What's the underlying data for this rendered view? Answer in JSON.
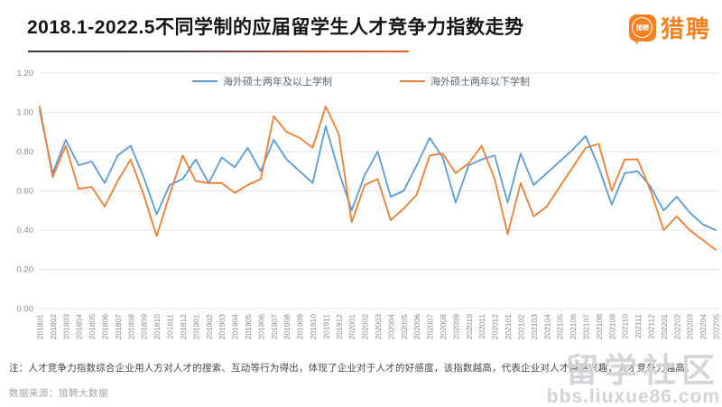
{
  "header": {
    "title": "2018.1-2022.5不同学制的应届留学生人才竞争力指数走势",
    "logo": {
      "wordmark": "猎聘",
      "badge_text": "猎聘"
    }
  },
  "chart_data": {
    "type": "line",
    "title": "2018.1-2022.5不同学制的应届留学生人才竞争力指数走势",
    "xlabel": "",
    "ylabel": "",
    "ylim": [
      0,
      1.2
    ],
    "yticks": [
      "0.00",
      "0.20",
      "0.40",
      "0.60",
      "0.80",
      "1.00",
      "1.20"
    ],
    "grid": "horizontal",
    "legend_position": "top",
    "categories": [
      "201801",
      "201802",
      "201803",
      "201804",
      "201805",
      "201806",
      "201807",
      "201808",
      "201809",
      "201810",
      "201811",
      "201812",
      "201901",
      "201902",
      "201903",
      "201904",
      "201905",
      "201906",
      "201907",
      "201908",
      "201909",
      "201910",
      "201911",
      "201912",
      "202001",
      "202002",
      "202003",
      "202004",
      "202005",
      "202006",
      "202007",
      "202008",
      "202009",
      "202010",
      "202011",
      "202012",
      "202101",
      "202102",
      "202103",
      "202104",
      "202105",
      "202106",
      "202107",
      "202108",
      "202109",
      "202110",
      "202111",
      "202112",
      "202201",
      "202202",
      "202203",
      "202204",
      "202205"
    ],
    "series": [
      {
        "name": "海外硕士两年及以上学制",
        "color": "#5B9BD5",
        "values": [
          1.01,
          0.69,
          0.86,
          0.73,
          0.75,
          0.64,
          0.78,
          0.83,
          0.67,
          0.48,
          0.63,
          0.66,
          0.76,
          0.64,
          0.77,
          0.72,
          0.82,
          0.7,
          0.86,
          0.76,
          0.7,
          0.64,
          0.93,
          0.7,
          0.5,
          0.68,
          0.8,
          0.57,
          0.6,
          0.73,
          0.87,
          0.77,
          0.54,
          0.73,
          0.76,
          0.78,
          0.54,
          0.79,
          0.63,
          0.69,
          0.75,
          0.81,
          0.88,
          0.72,
          0.53,
          0.69,
          0.7,
          0.62,
          0.5,
          0.57,
          0.49,
          0.43,
          0.4
        ]
      },
      {
        "name": "海外硕士两年以下学制",
        "color": "#ED7D31",
        "values": [
          1.03,
          0.67,
          0.83,
          0.61,
          0.62,
          0.52,
          0.65,
          0.76,
          0.58,
          0.37,
          0.58,
          0.78,
          0.65,
          0.64,
          0.64,
          0.59,
          0.63,
          0.66,
          0.98,
          0.9,
          0.87,
          0.82,
          1.03,
          0.89,
          0.44,
          0.63,
          0.66,
          0.45,
          0.51,
          0.58,
          0.78,
          0.79,
          0.69,
          0.74,
          0.83,
          0.66,
          0.38,
          0.64,
          0.47,
          0.52,
          0.62,
          0.72,
          0.82,
          0.84,
          0.6,
          0.76,
          0.76,
          0.6,
          0.4,
          0.47,
          0.4,
          0.35,
          0.3
        ]
      }
    ]
  },
  "footer": {
    "note": "注：人才竞争力指数综合企业用人方对人才的搜索、互动等行为得出，体现了企业对于人才的好感度，该指数越高，代表企业对人才越感兴趣，人才竞争力越高。",
    "source": "数据来源：猎聘大数据"
  },
  "watermark": {
    "text": "留学社区",
    "url": "bbs.liuxue86.com"
  }
}
